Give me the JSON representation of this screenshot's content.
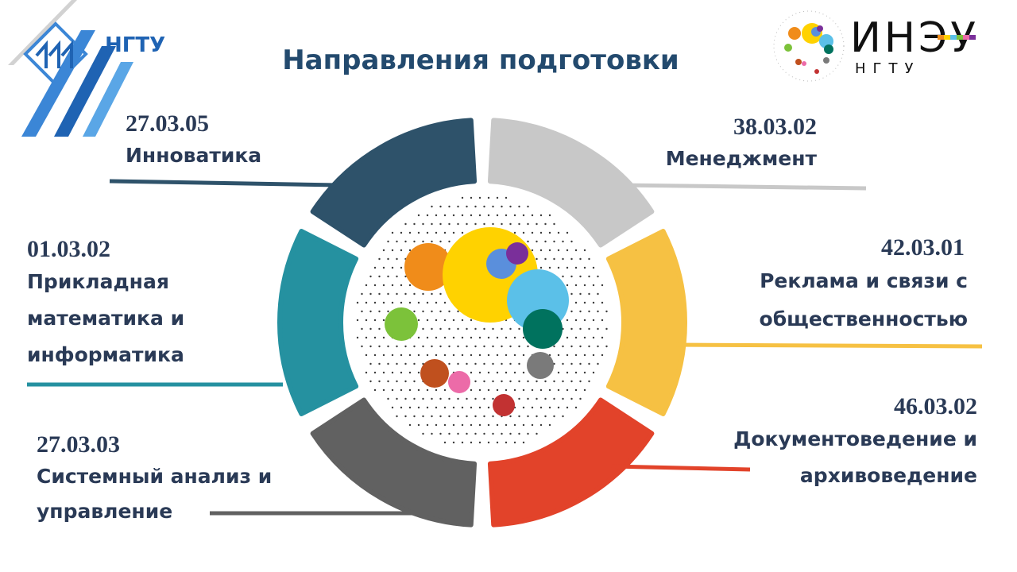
{
  "title": "Направления подготовки",
  "logo_left": {
    "text": "НГТУ",
    "icon": "ngtu-logo-icon",
    "color": "#1f63b3"
  },
  "logo_right": {
    "text": "ИНЭУ",
    "subtext": "НГТУ",
    "icon": "ineu-bubbles-logo-icon"
  },
  "programs": [
    {
      "code": "27.03.05",
      "name": "Инноватика",
      "color": "#2e526a"
    },
    {
      "code": "38.03.02",
      "name": "Менеджмент",
      "color": "#c8c8c8"
    },
    {
      "code": "42.03.01",
      "name": "Реклама и связи с общественностью",
      "color": "#f6c143"
    },
    {
      "code": "46.03.02",
      "name": "Документоведение и архивоведение",
      "color": "#e2432a"
    },
    {
      "code": "27.03.03",
      "name": "Системный анализ и управление",
      "color": "#616161"
    },
    {
      "code": "01.03.02",
      "name": "Прикладная математика и информатика",
      "color": "#2591a0"
    }
  ],
  "bubble_colors": [
    "#f08c1a",
    "#ffd200",
    "#5a8fdc",
    "#7a2f9a",
    "#5bc0e8",
    "#00725e",
    "#7cc23a",
    "#c0501e",
    "#ec6ba8",
    "#7a7a7a",
    "#c23232"
  ]
}
